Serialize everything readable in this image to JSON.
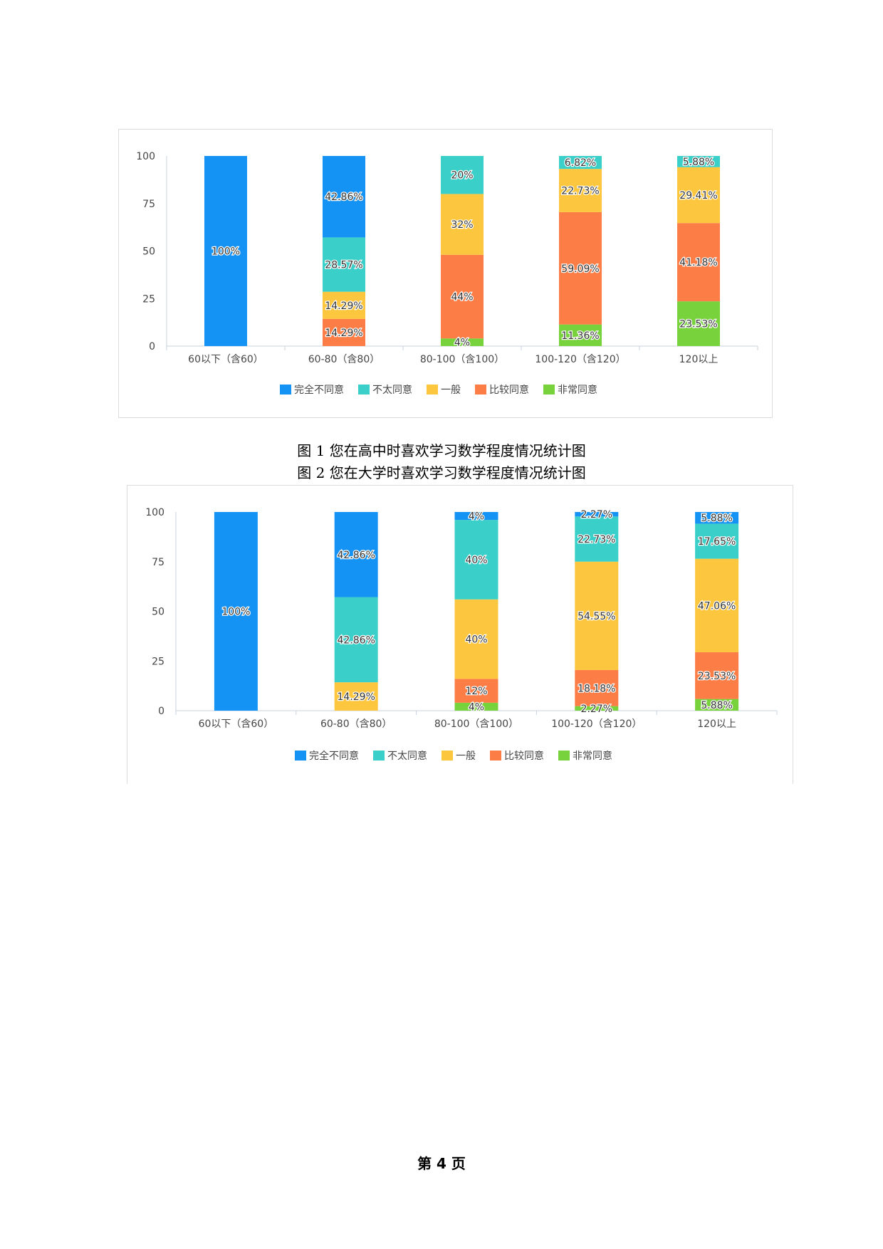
{
  "series_names": [
    "完全不同意",
    "不太同意",
    "一般",
    "比较同意",
    "非常同意"
  ],
  "colors": [
    "#1493f5",
    "#3acfc8",
    "#fdc63f",
    "#fd7d46",
    "#78d23c"
  ],
  "captions": {
    "figure1": "图 1  您在高中时喜欢学习数学程度情况统计图",
    "figure2": "图 2  您在大学时喜欢学习数学程度情况统计图"
  },
  "footer": {
    "page_label": "第 4 页"
  },
  "chart_data": [
    {
      "type": "bar",
      "stacked": true,
      "title": "",
      "xlabel": "",
      "ylabel": "",
      "ylim": [
        0,
        100
      ],
      "yticks": [
        0,
        25,
        50,
        75,
        100
      ],
      "grid": false,
      "legend_position": "bottom-center",
      "categories": [
        "60以下（含60）",
        "60-80（含80）",
        "80-100（含100）",
        "100-120（含120）",
        "120以上"
      ],
      "series": [
        {
          "name": "完全不同意",
          "values": [
            100,
            42.86,
            0,
            0,
            0
          ],
          "labels": [
            "100%",
            "42.86%",
            "",
            "",
            ""
          ]
        },
        {
          "name": "不太同意",
          "values": [
            0,
            28.57,
            20,
            6.82,
            5.88
          ],
          "labels": [
            "",
            "28.57%",
            "20%",
            "6.82%",
            "5.88%"
          ]
        },
        {
          "name": "一般",
          "values": [
            0,
            14.29,
            32,
            22.73,
            29.41
          ],
          "labels": [
            "",
            "14.29%",
            "32%",
            "22.73%",
            "29.41%"
          ]
        },
        {
          "name": "比较同意",
          "values": [
            0,
            14.29,
            44,
            59.09,
            41.18
          ],
          "labels": [
            "",
            "14.29%",
            "44%",
            "59.09%",
            "41.18%"
          ]
        },
        {
          "name": "非常同意",
          "values": [
            0,
            0,
            4,
            11.36,
            23.53
          ],
          "labels": [
            "",
            "",
            "4%",
            "11.36%",
            "23.53%"
          ]
        }
      ]
    },
    {
      "type": "bar",
      "stacked": true,
      "title": "",
      "xlabel": "",
      "ylabel": "",
      "ylim": [
        0,
        100
      ],
      "yticks": [
        0,
        25,
        50,
        75,
        100
      ],
      "grid": false,
      "legend_position": "bottom-center",
      "categories": [
        "60以下（含60）",
        "60-80（含80）",
        "80-100（含100）",
        "100-120（含120）",
        "120以上"
      ],
      "series": [
        {
          "name": "完全不同意",
          "values": [
            100,
            42.86,
            4,
            2.27,
            5.88
          ],
          "labels": [
            "100%",
            "42.86%",
            "4%",
            "2.27%",
            "5.88%"
          ]
        },
        {
          "name": "不太同意",
          "values": [
            0,
            42.86,
            40,
            22.73,
            17.65
          ],
          "labels": [
            "",
            "42.86%",
            "40%",
            "22.73%",
            "17.65%"
          ]
        },
        {
          "name": "一般",
          "values": [
            0,
            14.29,
            40,
            54.55,
            47.06
          ],
          "labels": [
            "",
            "14.29%",
            "40%",
            "54.55%",
            "47.06%"
          ]
        },
        {
          "name": "比较同意",
          "values": [
            0,
            0,
            12,
            18.18,
            23.53
          ],
          "labels": [
            "",
            "",
            "12%",
            "18.18%",
            "23.53%"
          ]
        },
        {
          "name": "非常同意",
          "values": [
            0,
            0,
            4,
            2.27,
            5.88
          ],
          "labels": [
            "",
            "",
            "4%",
            "2.27%",
            "5.88%"
          ]
        }
      ]
    }
  ]
}
